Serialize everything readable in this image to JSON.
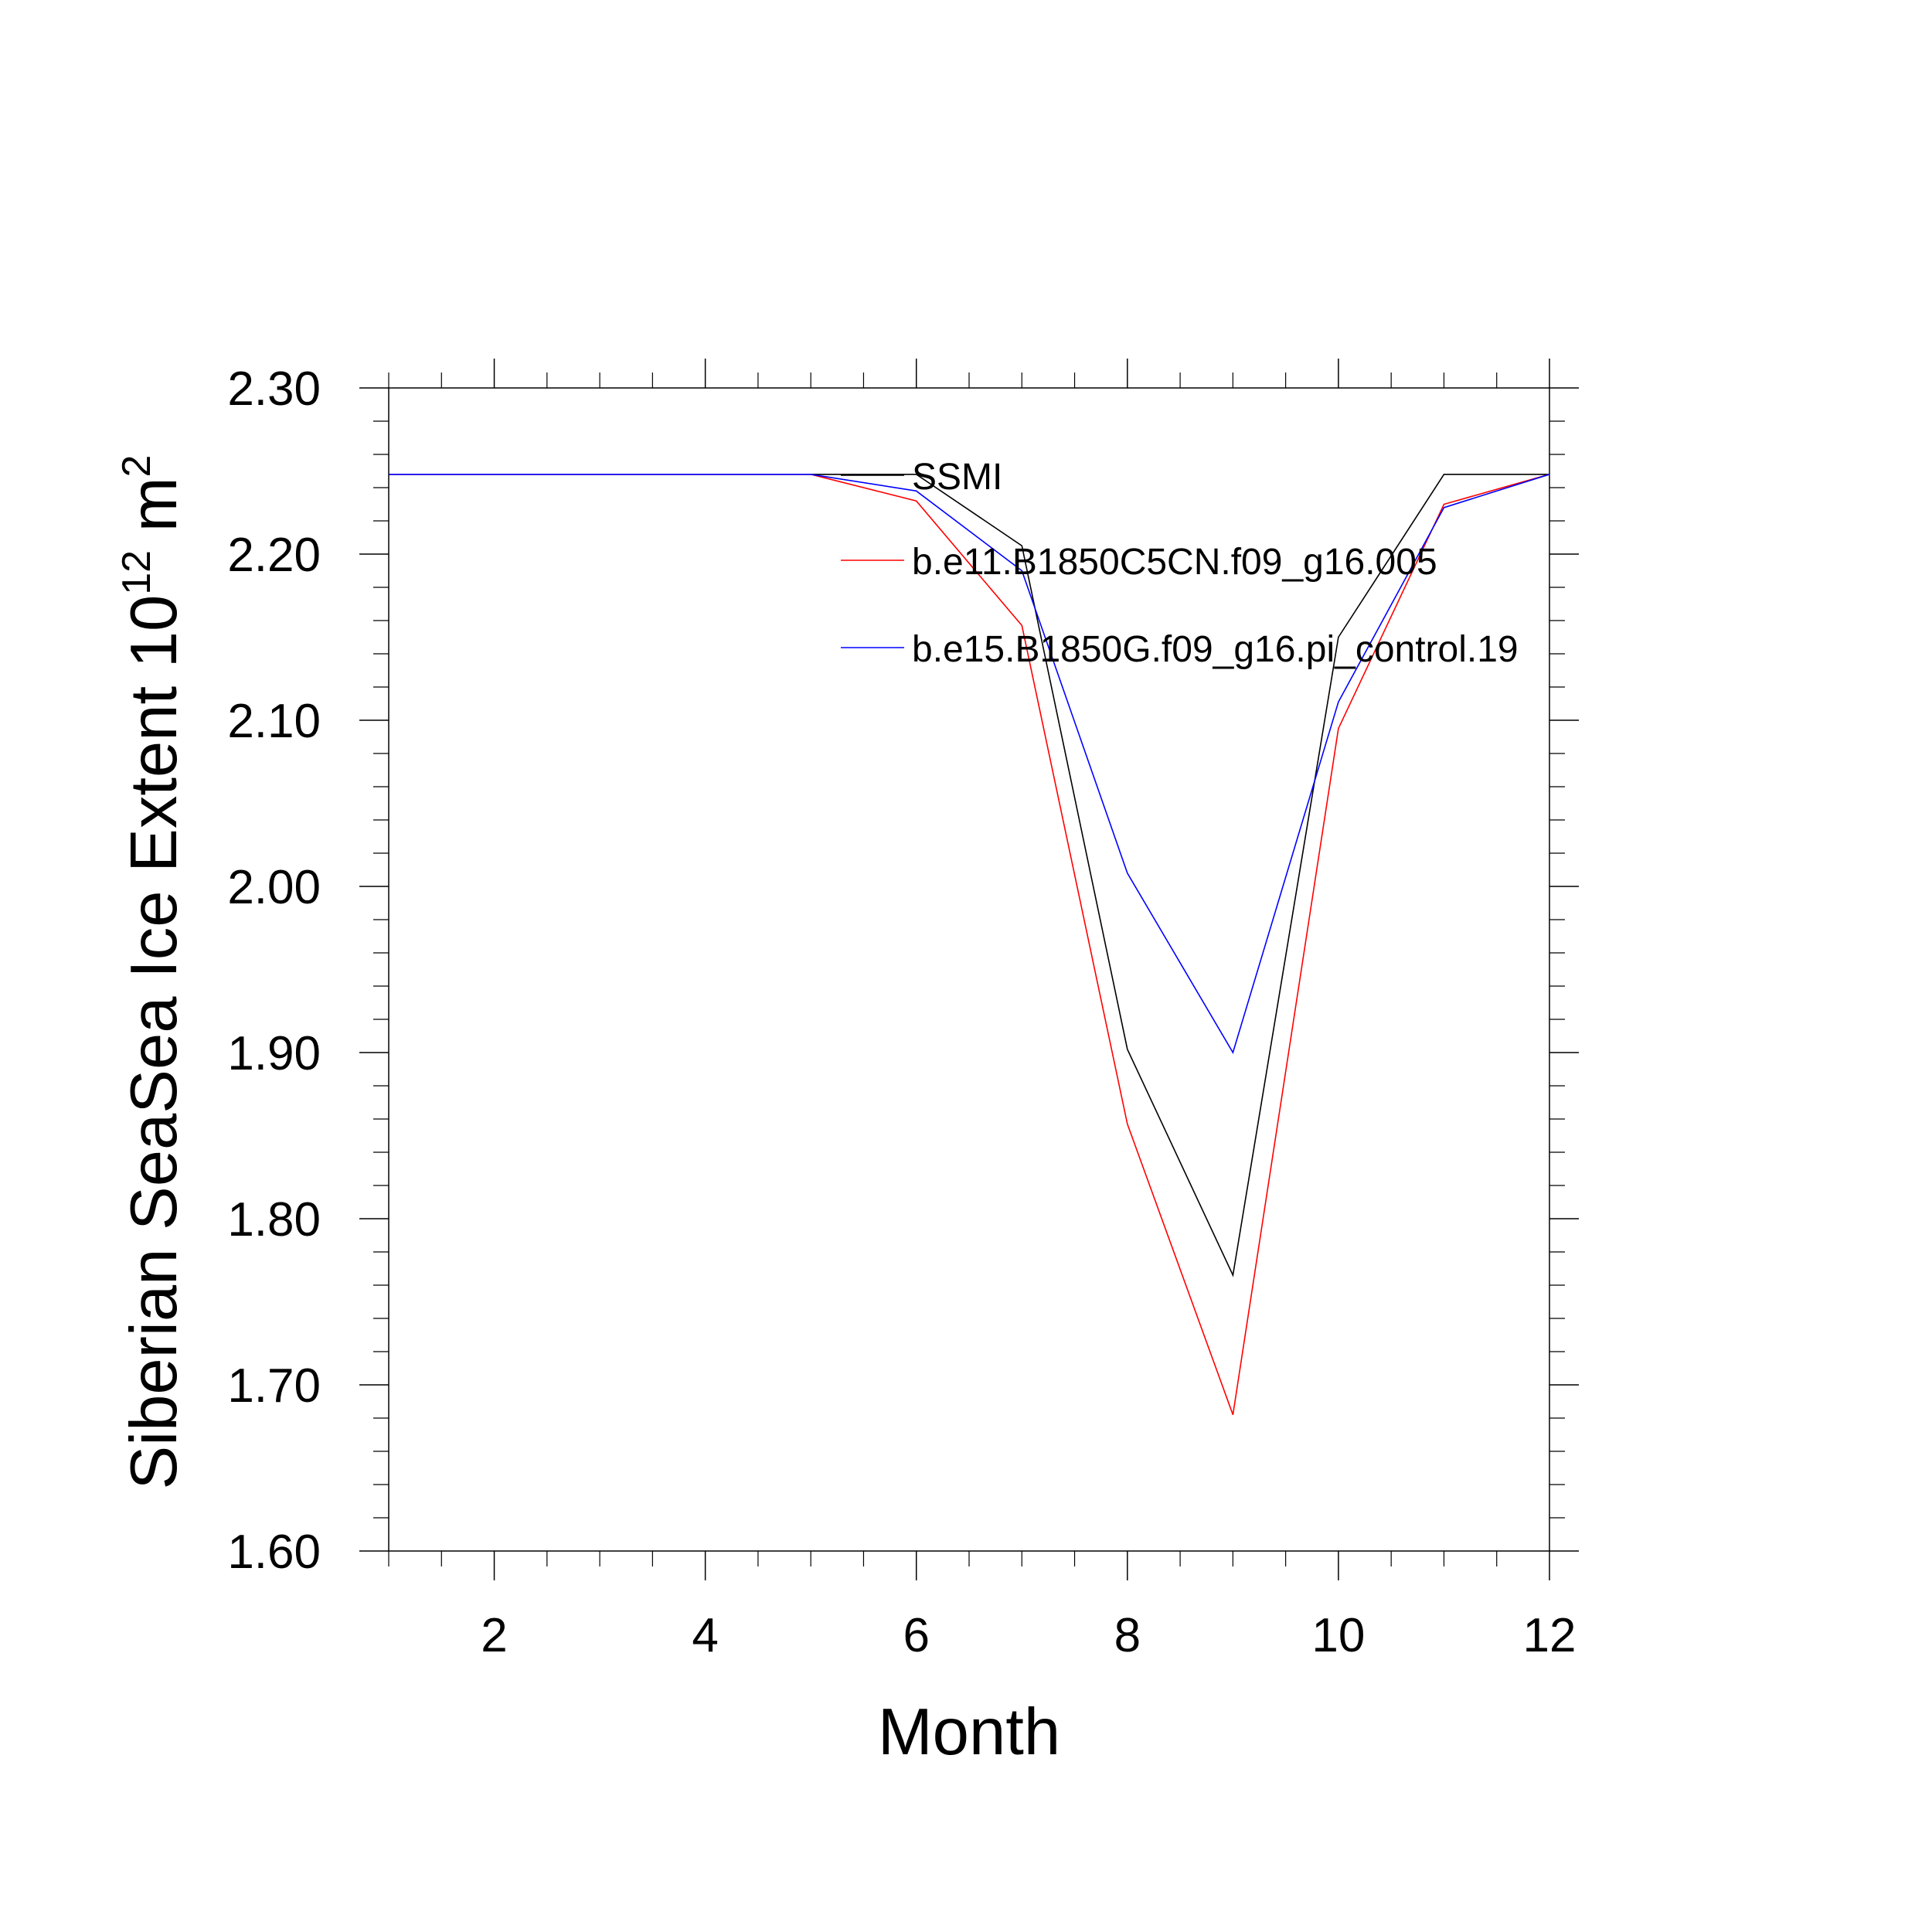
{
  "chart_data": {
    "type": "line",
    "x": [
      1,
      2,
      3,
      4,
      5,
      6,
      7,
      8,
      9,
      10,
      11,
      12
    ],
    "xlabel": "Month",
    "ylabel": "Siberian SeaSea Ice Extent 10",
    "ylabel_sup": "12",
    "ylabel_unit": " m",
    "ylabel_unit_sup": "2",
    "xlim": [
      1,
      12
    ],
    "ylim": [
      1.6,
      2.3
    ],
    "xticks": [
      2,
      4,
      6,
      8,
      10,
      12
    ],
    "xtick_labels": [
      "2",
      "4",
      "6",
      "8",
      "10",
      "12"
    ],
    "yticks": [
      1.6,
      1.7,
      1.8,
      1.9,
      2.0,
      2.1,
      2.2,
      2.3
    ],
    "ytick_labels": [
      "1.60",
      "1.70",
      "1.80",
      "1.90",
      "2.00",
      "2.10",
      "2.20",
      "2.30"
    ],
    "grid": false,
    "legend_position": "top-right",
    "series": [
      {
        "name": "SSMI",
        "color": "#000000",
        "values": [
          2.248,
          2.248,
          2.248,
          2.248,
          2.248,
          2.248,
          2.205,
          1.902,
          1.766,
          2.15,
          2.248,
          2.248
        ]
      },
      {
        "name": "b.e11.B1850C5CN.f09_g16.005",
        "color": "#ff0000",
        "values": [
          2.248,
          2.248,
          2.248,
          2.248,
          2.248,
          2.232,
          2.157,
          1.857,
          1.682,
          2.095,
          2.23,
          2.248
        ]
      },
      {
        "name": "b.e15.B1850G.f09_g16.pi_control.19",
        "color": "#0000ff",
        "values": [
          2.248,
          2.248,
          2.248,
          2.248,
          2.248,
          2.238,
          2.19,
          2.008,
          1.9,
          2.111,
          2.228,
          2.248
        ]
      }
    ]
  }
}
